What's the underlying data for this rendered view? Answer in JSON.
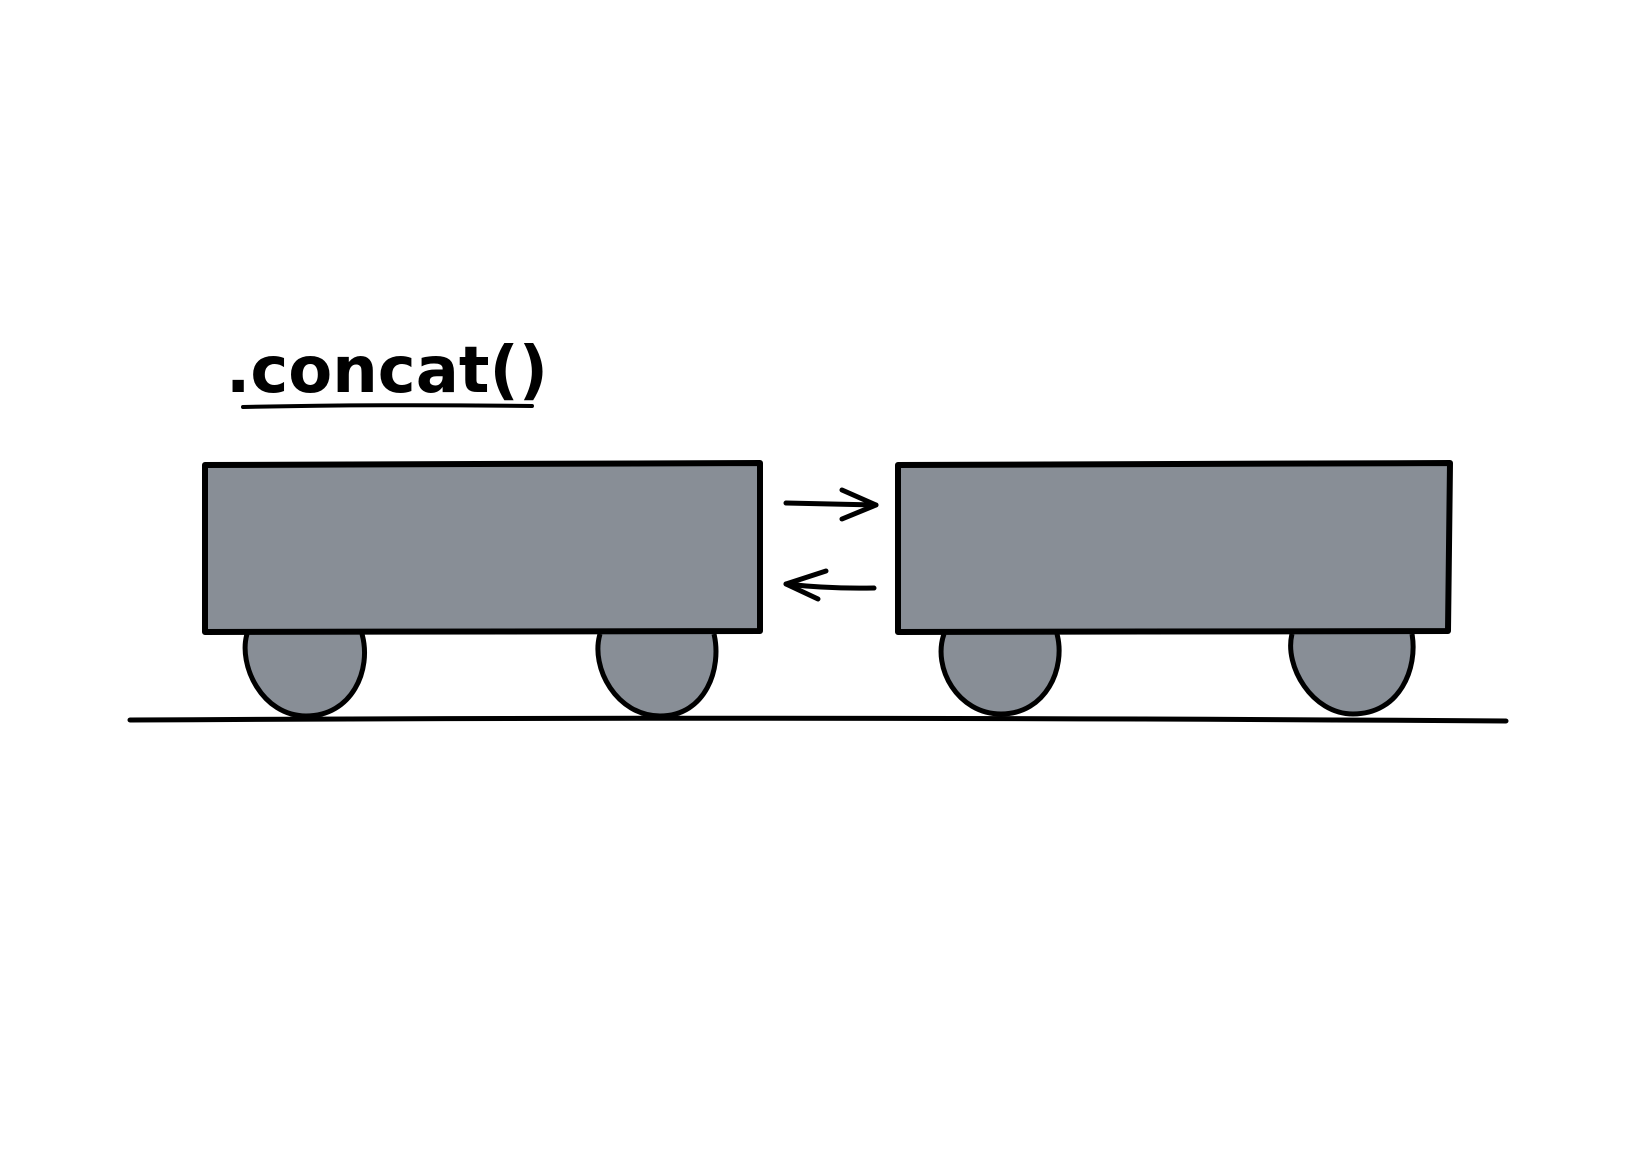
{
  "diagram": {
    "title": ".concat()",
    "colors": {
      "background": "#ffffff",
      "wagon_fill": "#888e96",
      "stroke": "#000000"
    },
    "elements": {
      "left_wagon": "wagon",
      "right_wagon": "wagon",
      "arrow_right": "arrow-right-icon",
      "arrow_left": "arrow-left-icon",
      "track": "ground-line"
    }
  }
}
